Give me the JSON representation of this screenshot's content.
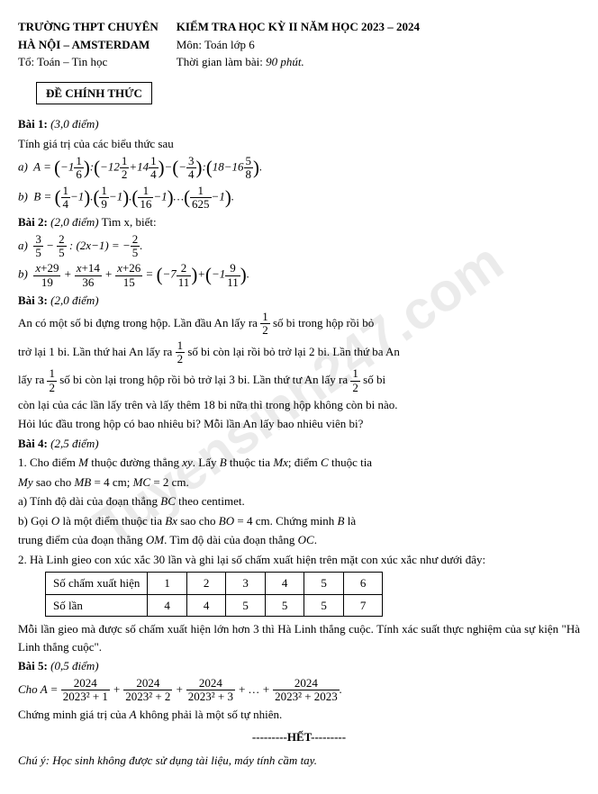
{
  "watermark": "Tuyensinh247.com",
  "header": {
    "school1": "TRƯỜNG THPT CHUYÊN",
    "school2": "HÀ NỘI – AMSTERDAM",
    "dept": "Tổ: Toán – Tin học",
    "title": "KIỂM TRA HỌC KỲ II NĂM HỌC 2023 – 2024",
    "subject": "Môn: Toán lớp 6",
    "time_label": "Thời gian làm bài:",
    "time_value": "90 phút."
  },
  "de_box": "ĐỀ CHÍNH THỨC",
  "bai1": {
    "label": "Bài 1:",
    "diem": "(3,0 điểm)",
    "intro": "Tính giá trị của các biểu thức sau",
    "a_label": "a)",
    "b_label": "b)"
  },
  "bai2": {
    "label": "Bài 2:",
    "diem": "(2,0 điểm)",
    "intro": "Tìm x, biết:",
    "a_label": "a)",
    "b_label": "b)"
  },
  "bai3": {
    "label": "Bài 3:",
    "diem": "(2,0 điểm)",
    "p1a": "An có một số bi đựng trong hộp. Lần đầu An lấy ra ",
    "p1b": " số bi trong hộp rồi bỏ",
    "p2a": "trở lại 1 bi. Lần thứ hai An lấy ra ",
    "p2b": " số bi còn lại rồi bỏ trở lại 2 bi. Lần thứ ba An",
    "p3a": "lấy ra ",
    "p3b": " số bi còn lại trong hộp rồi bỏ trở lại 3 bi. Lần thứ tư An lấy ra ",
    "p3c": " số bi",
    "p4": "còn lại của các lần lấy trên và lấy thêm 18 bi nữa thì trong hộp không còn bi nào.",
    "p5": "Hỏi lúc đầu trong hộp có bao nhiêu bi? Mỗi lần An lấy bao nhiêu viên bi?",
    "half_num": "1",
    "half_den": "2"
  },
  "bai4": {
    "label": "Bài 4:",
    "diem": "(2,5 điểm)",
    "p1a": "1. Cho điểm ",
    "p1_M": "M",
    "p1b": " thuộc đường thẳng ",
    "p1_xy": "xy",
    "p1c": ". Lấy ",
    "p1_B": "B",
    "p1d": " thuộc tia ",
    "p1_Mx": "Mx",
    "p1e": "; điểm ",
    "p1_C": "C",
    "p1f": " thuộc tia",
    "p2_My": "My",
    "p2a": " sao cho ",
    "p2_MB": "MB",
    "p2b": " = 4 cm; ",
    "p2_MC": "MC",
    "p2c": " = 2 cm.",
    "a": "a) Tính độ dài của đoạn thẳng ",
    "a_BC": "BC",
    "a2": " theo centimet.",
    "b1": "b) Gọi ",
    "b_O": "O",
    "b2": " là một điểm thuộc tia ",
    "b_Bx": "Bx",
    "b3": " sao cho ",
    "b_BO": "BO",
    "b4": " = 4 cm. Chứng minh ",
    "b_B": "B",
    "b5": " là",
    "b6": "trung điểm của đoạn thẳng ",
    "b_OM": "OM",
    "b7": ". Tìm độ dài của đoạn thẳng ",
    "b_OC": "OC",
    "b8": ".",
    "p3": "2. Hà Linh gieo con xúc xắc 30 lần và ghi lại số chấm xuất hiện trên mặt con xúc xắc như dưới đây:",
    "table": {
      "row1_label": "Số chấm xuất hiện",
      "row2_label": "Số lần",
      "cols": [
        "1",
        "2",
        "3",
        "4",
        "5",
        "6"
      ],
      "vals": [
        "4",
        "4",
        "5",
        "5",
        "5",
        "7"
      ]
    },
    "p4": "Mỗi lần gieo mà được số chấm xuất hiện lớn hơn 3 thì Hà Linh thắng cuộc. Tính xác suất thực nghiệm của sự kiện \"Hà Linh thắng cuộc\"."
  },
  "bai5": {
    "label": "Bài 5:",
    "diem": "(0,5 điểm)",
    "cho": "Cho ",
    "A": "A",
    "f_num": "2024",
    "f1_den": "2023² + 1",
    "f2_den": "2023² + 2",
    "f3_den": "2023² + 3",
    "dots": " + … + ",
    "f4_den": "2023² + 2023",
    "p2": "Chứng minh giá trị của ",
    "p2b": " không phải là một số tự nhiên."
  },
  "het": "---------HẾT---------",
  "note": "Chú ý: Học sinh không được sử dụng tài liệu, máy tính cầm tay."
}
